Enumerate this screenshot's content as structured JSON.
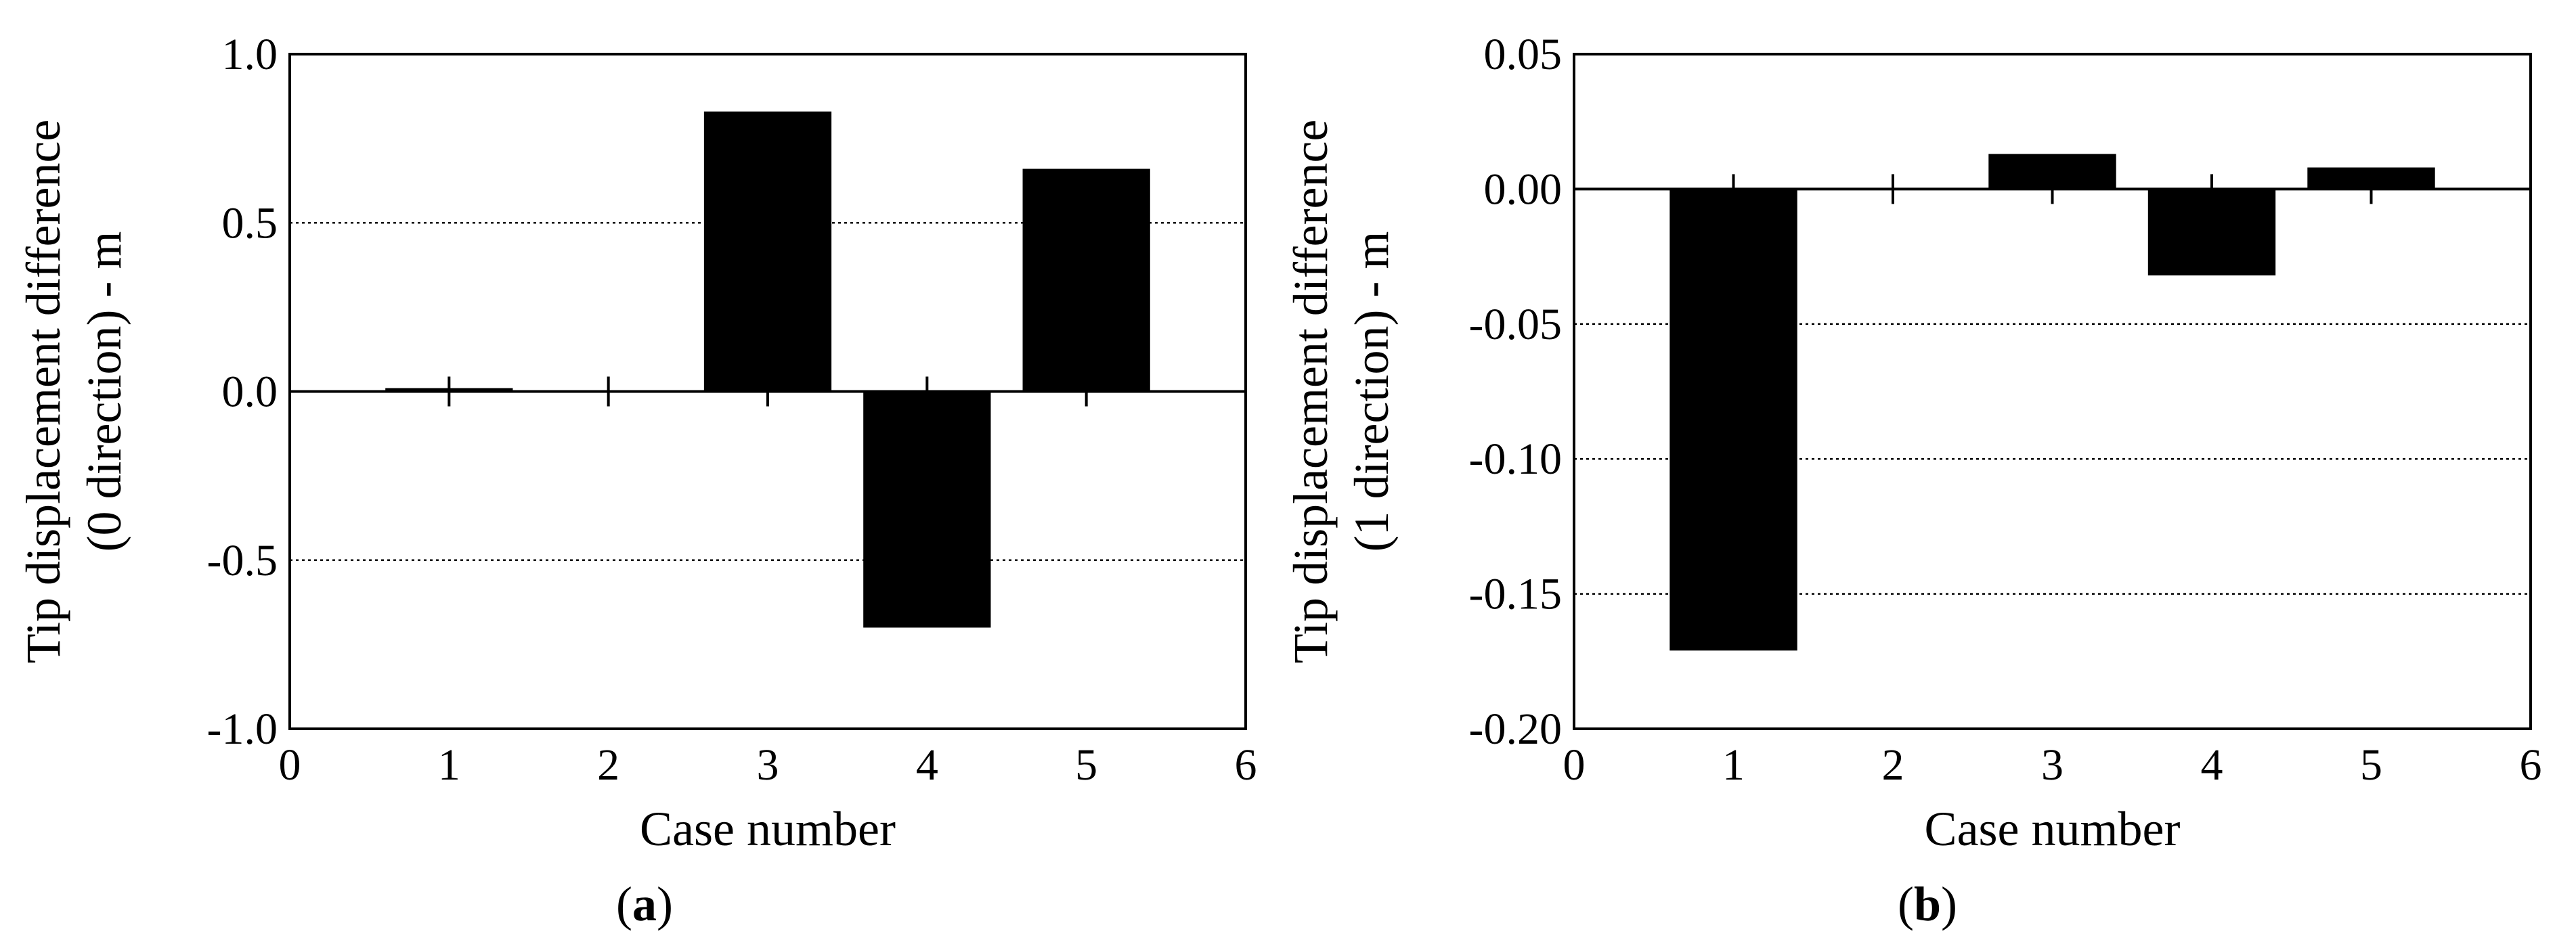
{
  "chart_data": [
    {
      "type": "bar",
      "panel_label": "a",
      "categories": [
        "1",
        "2",
        "3",
        "4",
        "5"
      ],
      "x": [
        1,
        2,
        3,
        4,
        5
      ],
      "values": [
        0.01,
        0.0,
        0.83,
        -0.7,
        0.66
      ],
      "xlabel": "Case number",
      "ylabel_line1": "Tip displacement difference",
      "ylabel_line2": "(0 direction) - m",
      "xlim": [
        0,
        6
      ],
      "ylim": [
        -1.0,
        1.0
      ],
      "xticks": [
        "0",
        "1",
        "2",
        "3",
        "4",
        "5",
        "6"
      ],
      "yticks": [
        "1.0",
        "0.5",
        "0.0",
        "-0.5",
        "-1.0"
      ],
      "grid_lines_at": [
        0.5,
        -0.5
      ],
      "bar_color": "#000000"
    },
    {
      "type": "bar",
      "panel_label": "b",
      "categories": [
        "1",
        "2",
        "3",
        "4",
        "5"
      ],
      "x": [
        1,
        2,
        3,
        4,
        5
      ],
      "values": [
        -0.171,
        0.0,
        0.013,
        -0.032,
        0.008
      ],
      "xlabel": "Case number",
      "ylabel_line1": "Tip displacement difference",
      "ylabel_line2": "(1 direction) - m",
      "xlim": [
        0,
        6
      ],
      "ylim": [
        -0.2,
        0.05
      ],
      "xticks": [
        "0",
        "1",
        "2",
        "3",
        "4",
        "5",
        "6"
      ],
      "yticks": [
        "0.05",
        "0.00",
        "-0.05",
        "-0.10",
        "-0.15",
        "-0.20"
      ],
      "grid_lines_at": [
        -0.05,
        -0.1,
        -0.15
      ],
      "bar_color": "#000000"
    }
  ]
}
